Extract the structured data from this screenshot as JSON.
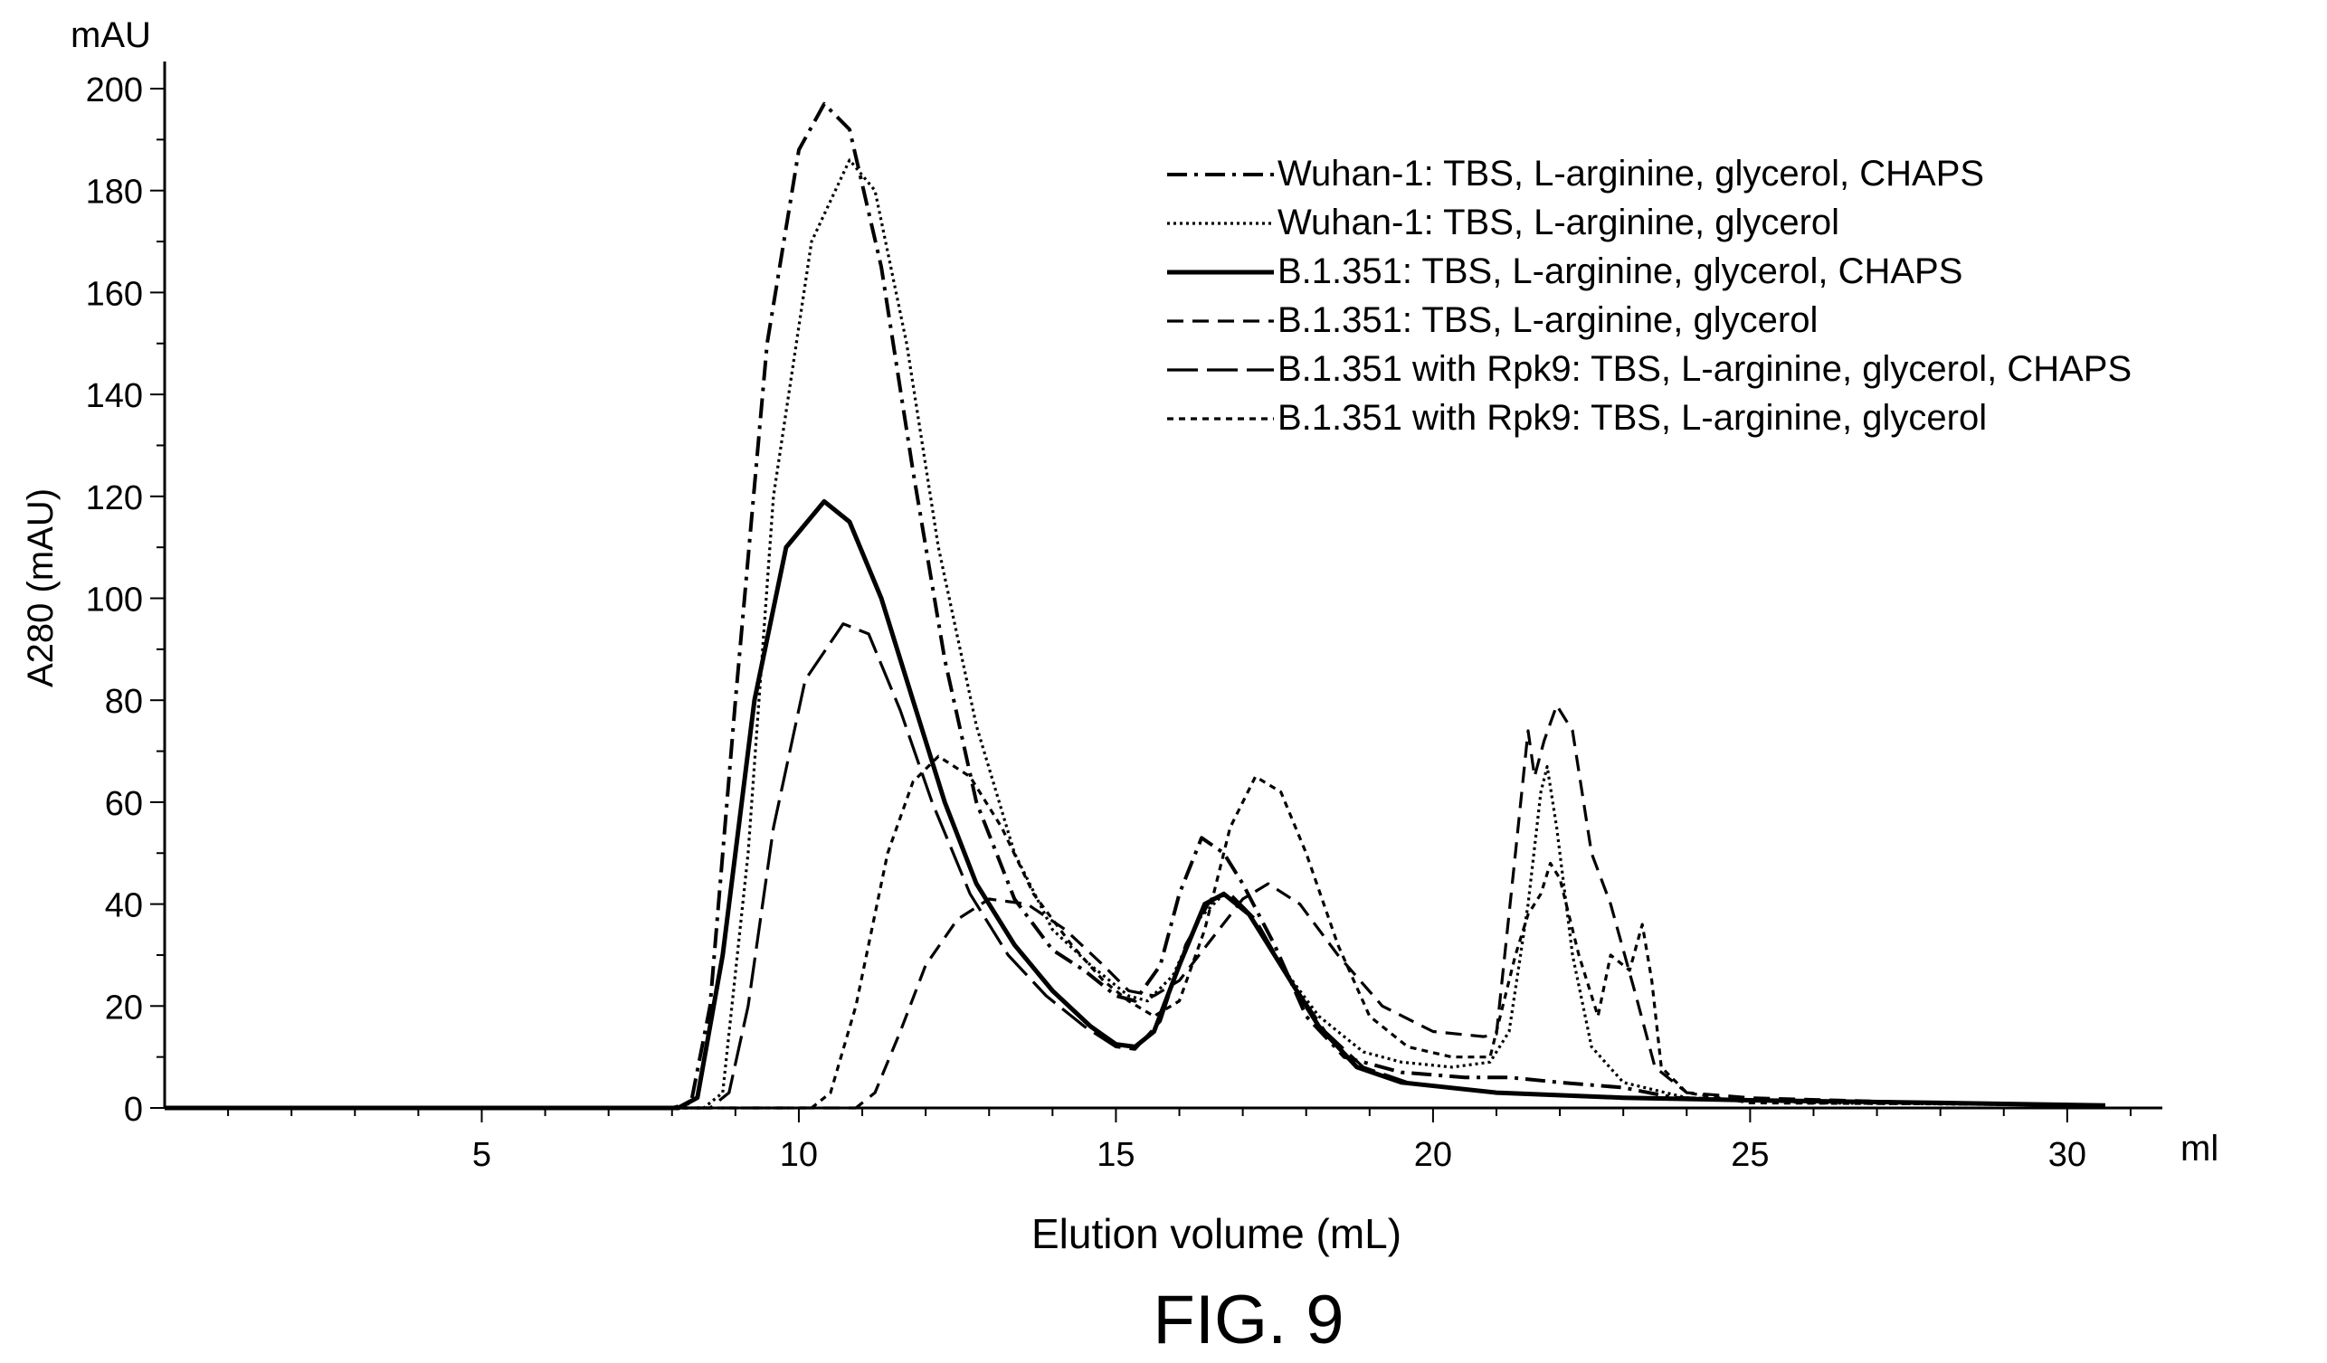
{
  "figure_label": "FIG. 9",
  "chart_data": {
    "type": "line",
    "title": "",
    "xlabel": "Elution volume (mL)",
    "ylabel": "A280 (mAU)",
    "x_unit": "ml",
    "y_unit": "mAU",
    "xlim": [
      0,
      31.5
    ],
    "ylim": [
      0,
      200
    ],
    "x_ticks": [
      5,
      10,
      15,
      20,
      25,
      30
    ],
    "y_ticks": [
      0,
      20,
      40,
      60,
      80,
      100,
      120,
      140,
      160,
      180,
      200
    ],
    "grid": false,
    "legend_position": "top-right",
    "series": [
      {
        "name": "Wuhan-1: TBS, L-arginine, glycerol, CHAPS",
        "dash": "dashdot",
        "points": [
          [
            0,
            0
          ],
          [
            8,
            0
          ],
          [
            8.3,
            1
          ],
          [
            8.6,
            20
          ],
          [
            9,
            80
          ],
          [
            9.5,
            150
          ],
          [
            10,
            188
          ],
          [
            10.4,
            197
          ],
          [
            10.8,
            192
          ],
          [
            11.3,
            165
          ],
          [
            11.8,
            125
          ],
          [
            12.3,
            88
          ],
          [
            12.8,
            60
          ],
          [
            13.4,
            41
          ],
          [
            14,
            31
          ],
          [
            14.5,
            27
          ],
          [
            15,
            22
          ],
          [
            15.3,
            21
          ],
          [
            15.7,
            28
          ],
          [
            16,
            42
          ],
          [
            16.35,
            53
          ],
          [
            16.7,
            50
          ],
          [
            17,
            44
          ],
          [
            17.5,
            32
          ],
          [
            18,
            18
          ],
          [
            18.6,
            10
          ],
          [
            19.5,
            7
          ],
          [
            20.5,
            6
          ],
          [
            21.2,
            6
          ],
          [
            22,
            5
          ],
          [
            23,
            4
          ],
          [
            23.8,
            2
          ],
          [
            25,
            1.5
          ],
          [
            28,
            1
          ],
          [
            30.6,
            0.5
          ]
        ]
      },
      {
        "name": "Wuhan-1: TBS, L-arginine, glycerol",
        "dash": "dotted",
        "points": [
          [
            0,
            0
          ],
          [
            8.5,
            0
          ],
          [
            8.8,
            3
          ],
          [
            9.2,
            50
          ],
          [
            9.6,
            120
          ],
          [
            10.2,
            170
          ],
          [
            10.8,
            186
          ],
          [
            11.2,
            180
          ],
          [
            11.7,
            150
          ],
          [
            12.2,
            110
          ],
          [
            12.8,
            75
          ],
          [
            13.4,
            50
          ],
          [
            14,
            35
          ],
          [
            14.6,
            28
          ],
          [
            15.2,
            22
          ],
          [
            15.5,
            21
          ],
          [
            15.9,
            26
          ],
          [
            16.3,
            37
          ],
          [
            16.7,
            42
          ],
          [
            17.1,
            38
          ],
          [
            17.6,
            28
          ],
          [
            18.2,
            18
          ],
          [
            18.9,
            11
          ],
          [
            19.5,
            9
          ],
          [
            20.3,
            8
          ],
          [
            20.9,
            9
          ],
          [
            21.2,
            15
          ],
          [
            21.5,
            40
          ],
          [
            21.7,
            62
          ],
          [
            21.8,
            67
          ],
          [
            21.95,
            55
          ],
          [
            22.2,
            30
          ],
          [
            22.5,
            12
          ],
          [
            23,
            5
          ],
          [
            24,
            2
          ],
          [
            26,
            1
          ],
          [
            30.6,
            0.5
          ]
        ]
      },
      {
        "name": "B.1.351: TBS, L-arginine, glycerol, CHAPS",
        "dash": "solid",
        "points": [
          [
            0,
            0
          ],
          [
            8.1,
            0
          ],
          [
            8.4,
            2
          ],
          [
            8.8,
            30
          ],
          [
            9.3,
            80
          ],
          [
            9.8,
            110
          ],
          [
            10.4,
            119
          ],
          [
            10.8,
            115
          ],
          [
            11.3,
            100
          ],
          [
            11.8,
            80
          ],
          [
            12.3,
            60
          ],
          [
            12.8,
            44
          ],
          [
            13.4,
            32
          ],
          [
            14,
            23
          ],
          [
            14.6,
            16
          ],
          [
            15,
            12.5
          ],
          [
            15.3,
            12
          ],
          [
            15.6,
            15
          ],
          [
            16,
            28
          ],
          [
            16.4,
            40
          ],
          [
            16.7,
            42
          ],
          [
            17.1,
            38
          ],
          [
            17.6,
            28
          ],
          [
            18.2,
            16
          ],
          [
            18.8,
            8
          ],
          [
            19.5,
            5
          ],
          [
            21,
            3
          ],
          [
            23,
            2
          ],
          [
            25,
            1.5
          ],
          [
            28,
            1
          ],
          [
            30.6,
            0.5
          ]
        ]
      },
      {
        "name": "B.1.351: TBS, L-arginine, glycerol",
        "dash": "dashed",
        "points": [
          [
            0,
            0
          ],
          [
            10.9,
            0
          ],
          [
            11.2,
            3
          ],
          [
            11.6,
            15
          ],
          [
            12,
            28
          ],
          [
            12.5,
            37
          ],
          [
            13,
            41
          ],
          [
            13.6,
            40
          ],
          [
            14.2,
            35
          ],
          [
            14.8,
            28
          ],
          [
            15.2,
            23
          ],
          [
            15.6,
            22
          ],
          [
            16,
            25
          ],
          [
            16.5,
            33
          ],
          [
            17,
            41
          ],
          [
            17.4,
            44
          ],
          [
            17.9,
            40
          ],
          [
            18.5,
            30
          ],
          [
            19.2,
            20
          ],
          [
            20,
            15
          ],
          [
            20.8,
            14
          ],
          [
            21,
            14.5
          ],
          [
            21.3,
            50
          ],
          [
            21.5,
            74
          ],
          [
            21.6,
            65
          ],
          [
            21.75,
            72
          ],
          [
            21.95,
            79
          ],
          [
            22.2,
            74
          ],
          [
            22.5,
            50
          ],
          [
            22.8,
            40
          ],
          [
            23.2,
            22
          ],
          [
            23.5,
            8
          ],
          [
            24,
            3
          ],
          [
            25,
            2
          ],
          [
            28,
            1
          ],
          [
            30.6,
            0.5
          ]
        ]
      },
      {
        "name": "B.1.351 with Rpk9: TBS, L-arginine, glycerol, CHAPS",
        "dash": "longdash",
        "points": [
          [
            0,
            0
          ],
          [
            8.6,
            0
          ],
          [
            8.9,
            3
          ],
          [
            9.2,
            20
          ],
          [
            9.6,
            55
          ],
          [
            10.1,
            84
          ],
          [
            10.7,
            95
          ],
          [
            11.1,
            93
          ],
          [
            11.6,
            78
          ],
          [
            12.1,
            60
          ],
          [
            12.7,
            42
          ],
          [
            13.3,
            30
          ],
          [
            13.9,
            22
          ],
          [
            14.5,
            16
          ],
          [
            15,
            12
          ],
          [
            15.3,
            11.5
          ],
          [
            15.7,
            17
          ],
          [
            16.1,
            32
          ],
          [
            16.5,
            41
          ],
          [
            16.8,
            42
          ],
          [
            17.2,
            37
          ],
          [
            17.7,
            26
          ],
          [
            18.3,
            15
          ],
          [
            18.9,
            8
          ],
          [
            19.6,
            5
          ],
          [
            21,
            3
          ],
          [
            23,
            2
          ],
          [
            25,
            1.5
          ],
          [
            28,
            1
          ],
          [
            30.6,
            0.5
          ]
        ]
      },
      {
        "name": "B.1.351 with Rpk9: TBS, L-arginine, glycerol",
        "dash": "shortdash",
        "points": [
          [
            0,
            0
          ],
          [
            10.2,
            0
          ],
          [
            10.5,
            3
          ],
          [
            10.9,
            20
          ],
          [
            11.4,
            50
          ],
          [
            11.8,
            64
          ],
          [
            12.2,
            69
          ],
          [
            12.7,
            65
          ],
          [
            13.2,
            55
          ],
          [
            13.7,
            42
          ],
          [
            14.3,
            32
          ],
          [
            14.8,
            25
          ],
          [
            15.2,
            21
          ],
          [
            15.6,
            18
          ],
          [
            16,
            21
          ],
          [
            16.4,
            35
          ],
          [
            16.8,
            55
          ],
          [
            17.2,
            65
          ],
          [
            17.6,
            62
          ],
          [
            18,
            50
          ],
          [
            18.5,
            32
          ],
          [
            19,
            18
          ],
          [
            19.6,
            12
          ],
          [
            20.3,
            10
          ],
          [
            20.9,
            10
          ],
          [
            21.1,
            20
          ],
          [
            21.3,
            30
          ],
          [
            21.5,
            38
          ],
          [
            21.7,
            42
          ],
          [
            21.85,
            48
          ],
          [
            22,
            45
          ],
          [
            22.3,
            30
          ],
          [
            22.6,
            18
          ],
          [
            22.8,
            30
          ],
          [
            23.1,
            27
          ],
          [
            23.3,
            36
          ],
          [
            23.45,
            25
          ],
          [
            23.6,
            8
          ],
          [
            24,
            3
          ],
          [
            25,
            1
          ],
          [
            28,
            0.8
          ],
          [
            30.6,
            0.5
          ]
        ]
      }
    ]
  }
}
